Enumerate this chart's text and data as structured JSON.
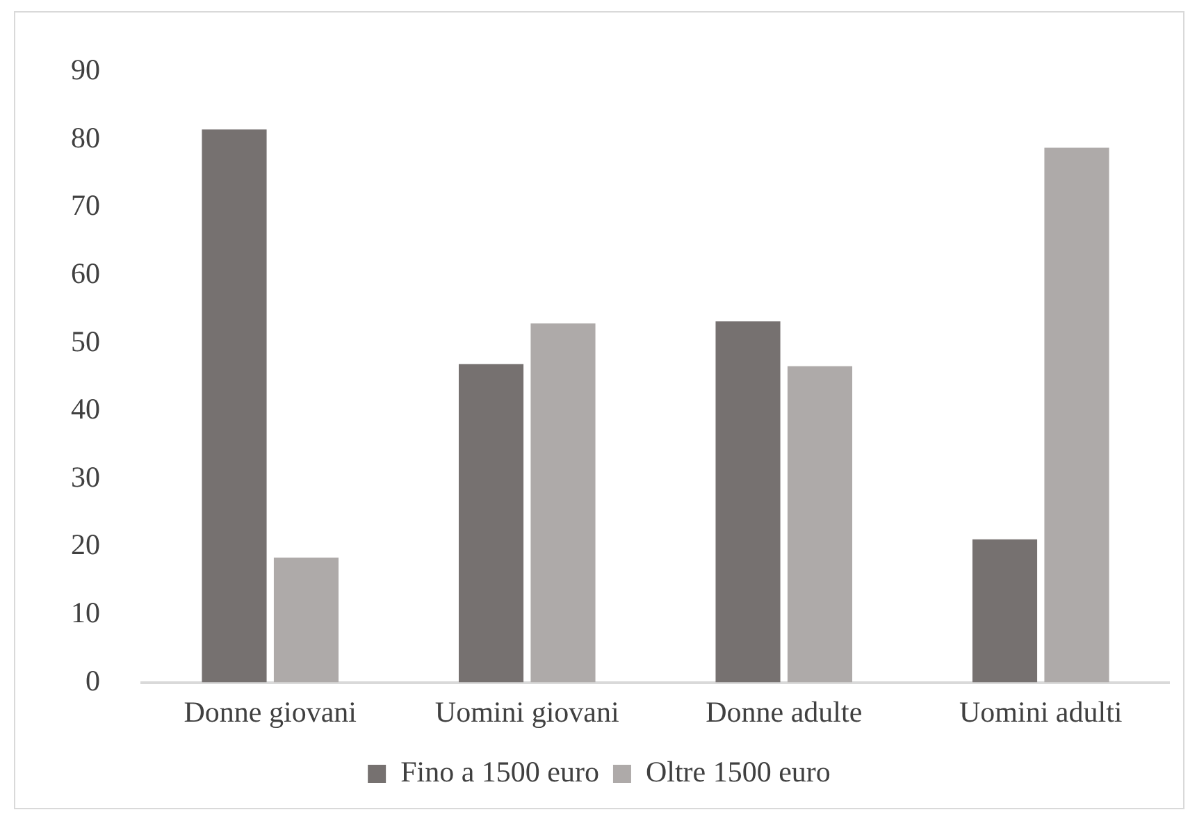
{
  "chart_data": {
    "type": "bar",
    "categories": [
      "Donne giovani",
      "Uomini giovani",
      "Donne adulte",
      "Uomini adulti"
    ],
    "series": [
      {
        "name": "Fino a 1500 euro",
        "color": "#767170",
        "values": [
          81.5,
          46.9,
          53.2,
          21.1
        ]
      },
      {
        "name": "Oltre 1500 euro",
        "color": "#aeaaa9",
        "values": [
          18.4,
          52.9,
          46.6,
          78.8
        ]
      }
    ],
    "ylim": [
      0,
      90
    ],
    "yticks": [
      0,
      10,
      20,
      30,
      40,
      50,
      60,
      70,
      80,
      90
    ],
    "grid": false,
    "legend": "bottom"
  }
}
